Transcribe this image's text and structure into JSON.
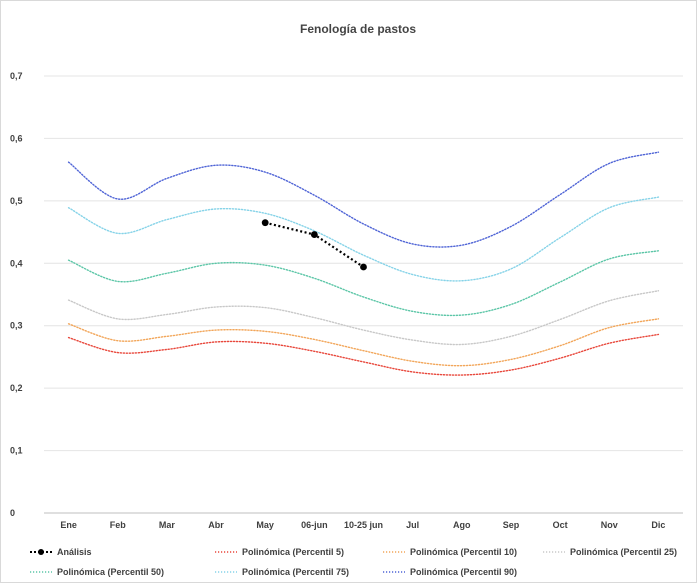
{
  "chart_data": {
    "type": "line",
    "title": "Fenología de pastos",
    "xlabel": "",
    "ylabel": "",
    "categories": [
      "Ene",
      "Feb",
      "Mar",
      "Abr",
      "May",
      "06-jun",
      "10-25 jun",
      "Jul",
      "Ago",
      "Sep",
      "Oct",
      "Nov",
      "Dic"
    ],
    "ylim": [
      0,
      0.7
    ],
    "yticks": [
      "0",
      "0,1",
      "0,2",
      "0,3",
      "0,4",
      "0,5",
      "0,6",
      "0,7"
    ],
    "grid": "horizontal",
    "legend_position": "bottom",
    "series": [
      {
        "name": "Análisis",
        "style": "dotted-markers",
        "color": "#000000",
        "values": [
          null,
          null,
          null,
          null,
          0.465,
          0.446,
          0.394,
          null,
          null,
          null,
          null,
          null,
          null
        ]
      },
      {
        "name": "Polinómica (Percentil 5)",
        "style": "dotted",
        "color": "#e8473b",
        "values": [
          0.281,
          0.257,
          0.262,
          0.274,
          0.272,
          0.259,
          0.242,
          0.226,
          0.221,
          0.229,
          0.248,
          0.272,
          0.286
        ]
      },
      {
        "name": "Polinómica (Percentil 10)",
        "style": "dotted",
        "color": "#f2a65a",
        "values": [
          0.303,
          0.276,
          0.283,
          0.293,
          0.291,
          0.278,
          0.26,
          0.243,
          0.236,
          0.246,
          0.268,
          0.297,
          0.311
        ]
      },
      {
        "name": "Polinómica (Percentil 25)",
        "style": "dotted",
        "color": "#c8c8c8",
        "values": [
          0.341,
          0.311,
          0.318,
          0.33,
          0.329,
          0.313,
          0.293,
          0.277,
          0.27,
          0.283,
          0.31,
          0.34,
          0.356
        ]
      },
      {
        "name": "Polinómica (Percentil 50)",
        "style": "dotted",
        "color": "#5cc6a7",
        "values": [
          0.405,
          0.371,
          0.384,
          0.4,
          0.397,
          0.376,
          0.346,
          0.323,
          0.317,
          0.334,
          0.37,
          0.407,
          0.42
        ]
      },
      {
        "name": "Polinómica (Percentil 75)",
        "style": "dotted",
        "color": "#86d3e8",
        "values": [
          0.489,
          0.448,
          0.47,
          0.487,
          0.48,
          0.452,
          0.413,
          0.382,
          0.372,
          0.391,
          0.441,
          0.489,
          0.506
        ]
      },
      {
        "name": "Polinómica (Percentil 90)",
        "style": "dotted",
        "color": "#4f64d6",
        "values": [
          0.562,
          0.503,
          0.536,
          0.557,
          0.546,
          0.509,
          0.463,
          0.431,
          0.429,
          0.459,
          0.51,
          0.56,
          0.578
        ]
      }
    ]
  }
}
